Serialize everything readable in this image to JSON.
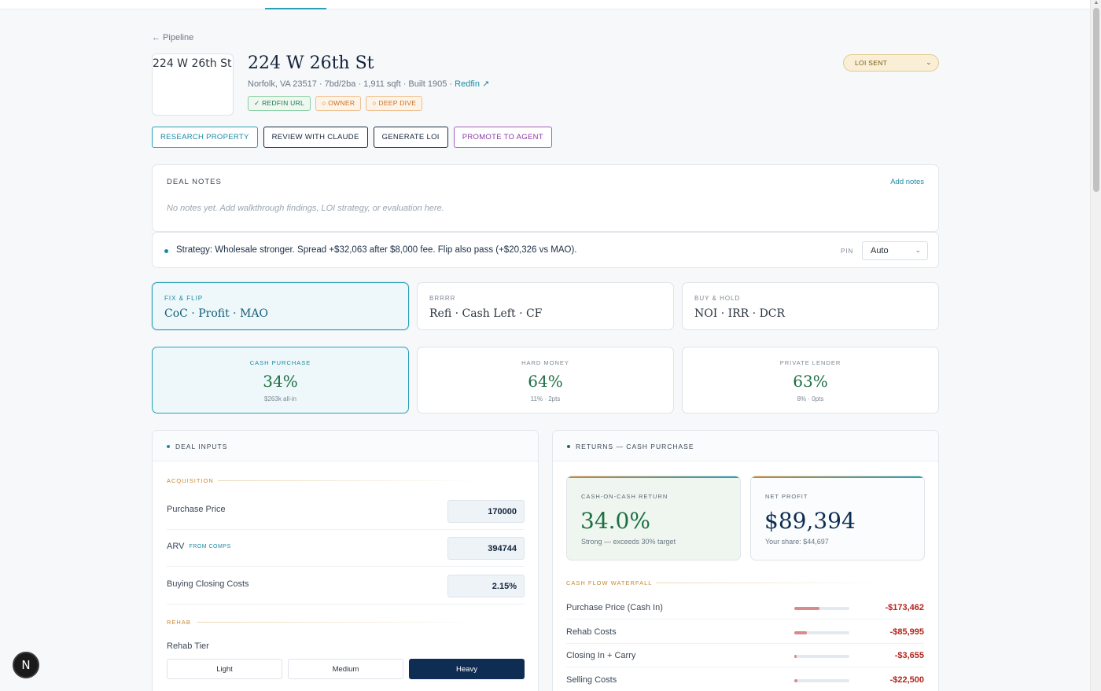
{
  "nav": {
    "back": "← Pipeline"
  },
  "property": {
    "thumb_alt": "224 W 26th St",
    "title": "224 W 26th St",
    "details": "Norfolk, VA 23517 · 7bd/2ba · 1,911 sqft · Built 1905 · ",
    "link": "Redfin ↗",
    "badges": [
      "✓ REDFIN URL",
      "○ OWNER",
      "○ DEEP DIVE"
    ],
    "status": "LOI SENT"
  },
  "actions": [
    "RESEARCH PROPERTY",
    "REVIEW WITH CLAUDE",
    "GENERATE LOI",
    "PROMOTE TO AGENT"
  ],
  "notes": {
    "title": "DEAL NOTES",
    "add": "Add notes",
    "placeholder": "No notes yet. Add walkthrough findings, LOI strategy, or evaluation here."
  },
  "strategy": {
    "text": "Strategy: Wholesale stronger. Spread +$32,063 after $8,000 fee. Flip also pass (+$20,326 vs MAO).",
    "pin_label": "PIN",
    "pin_value": "Auto"
  },
  "strategies": [
    {
      "kicker": "FIX & FLIP",
      "metrics": "CoC · Profit · MAO",
      "active": true
    },
    {
      "kicker": "BRRRR",
      "metrics": "Refi · Cash Left · CF",
      "active": false
    },
    {
      "kicker": "BUY & HOLD",
      "metrics": "NOI · IRR · DCR",
      "active": false
    }
  ],
  "financing": [
    {
      "kicker": "CASH PURCHASE",
      "value": "34%",
      "sub": "$263k all-in",
      "active": true
    },
    {
      "kicker": "HARD MONEY",
      "value": "64%",
      "sub": "11% · 2pts",
      "active": false
    },
    {
      "kicker": "PRIVATE LENDER",
      "value": "63%",
      "sub": "8% · 0pts",
      "active": false
    }
  ],
  "inputs": {
    "title": "DEAL INPUTS",
    "acquisition_title": "ACQUISITION",
    "purchase_price_label": "Purchase Price",
    "purchase_price": "170000",
    "arv_label": "ARV",
    "arv_tag": "FROM COMPS",
    "arv": "394744",
    "closing_label": "Buying Closing Costs",
    "closing": "2.15%",
    "rehab_title": "REHAB",
    "tier_label": "Rehab Tier",
    "tiers": [
      "Light",
      "Medium",
      "Heavy"
    ],
    "tier_selected": "Heavy"
  },
  "returns": {
    "title": "RETURNS — CASH PURCHASE",
    "coc_kicker": "CASH-ON-CASH RETURN",
    "coc_value": "34.0%",
    "coc_sub": "Strong — exceeds 30% target",
    "profit_kicker": "NET PROFIT",
    "profit_value": "$89,394",
    "profit_sub": "Your share: $44,697",
    "waterfall_title": "CASH FLOW WATERFALL",
    "waterfall": [
      {
        "label": "Purchase Price (Cash In)",
        "amount": "-$173,462",
        "share": 0.46
      },
      {
        "label": "Rehab Costs",
        "amount": "-$85,995",
        "share": 0.23
      },
      {
        "label": "Closing In + Carry",
        "amount": "-$3,655",
        "share": 0.01
      },
      {
        "label": "Selling Costs",
        "amount": "-$22,500",
        "share": 0.06
      }
    ]
  },
  "colors": {
    "accent": "#2a9fb8",
    "positive": "#1d6f42",
    "negative": "#b3261e",
    "navy": "#0f2d52",
    "gold": "#c9872f"
  },
  "icons": [
    "back-arrow-icon",
    "chevron-down-icon",
    "external-link-icon",
    "nextjs-logo-icon"
  ],
  "devtools": {
    "logo": "N"
  }
}
